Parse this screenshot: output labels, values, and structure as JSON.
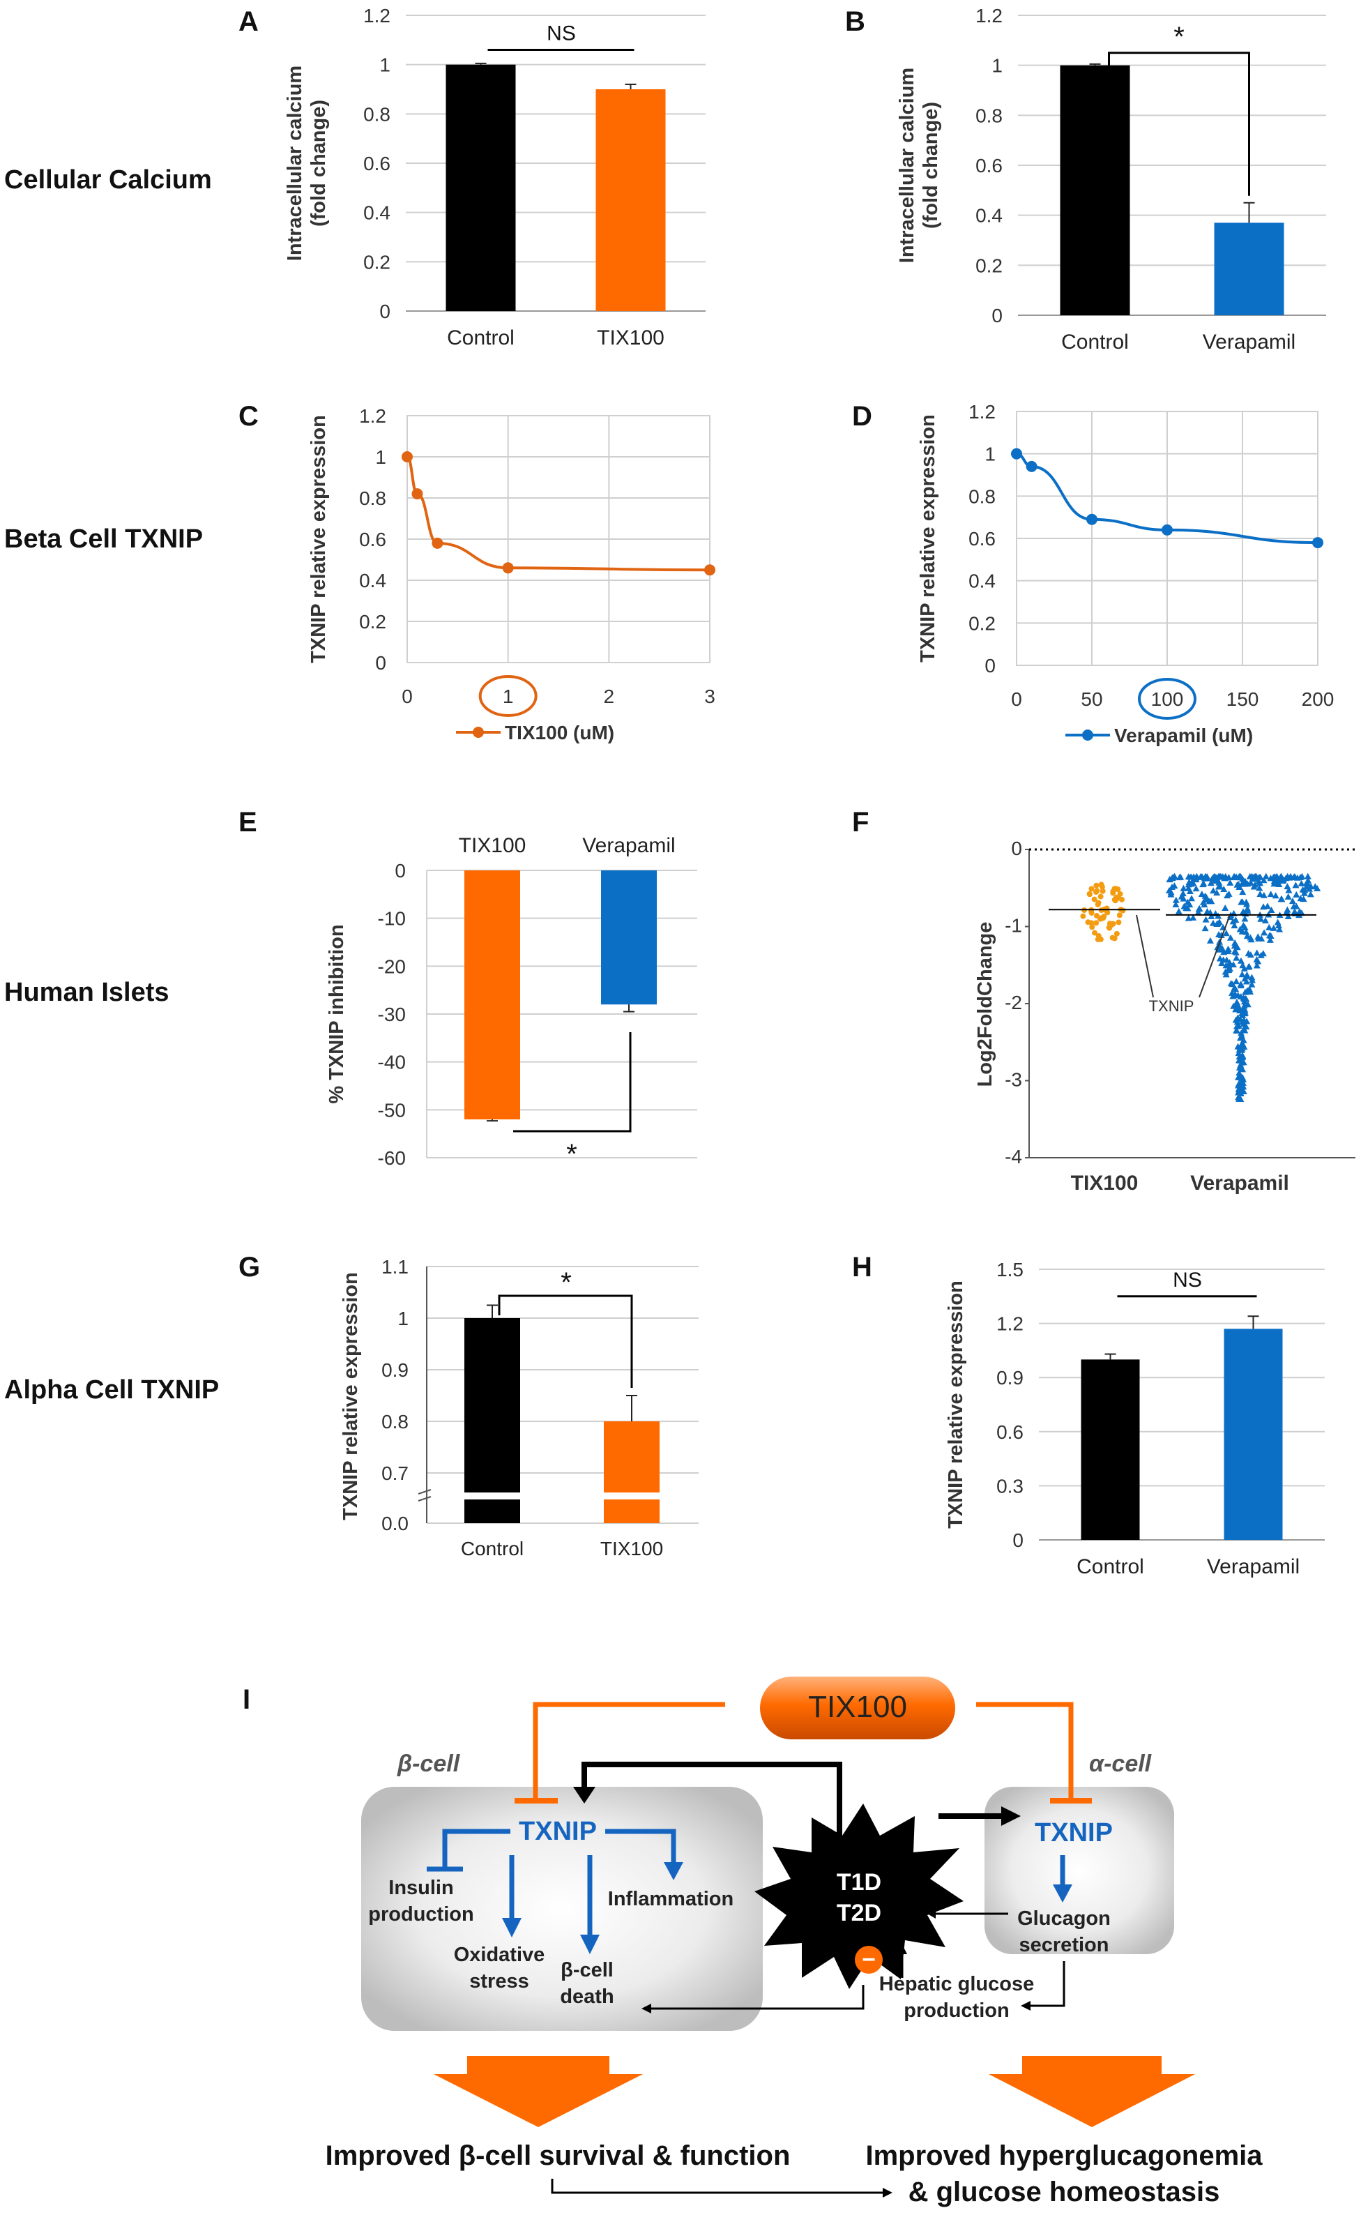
{
  "row_labels": [
    "Cellular Calcium",
    "Beta Cell TXNIP",
    "Human Islets",
    "Alpha Cell TXNIP"
  ],
  "colors": {
    "black": "#000000",
    "orange": "#ff6a00",
    "blue": "#0b6fc6",
    "dark_orange": "#e06412",
    "gold": "#f39c12"
  },
  "chart_data": [
    {
      "panel": "A",
      "type": "bar",
      "categories": [
        "Control",
        "TIX100"
      ],
      "values": [
        1.0,
        0.9
      ],
      "errors": [
        0.005,
        0.02
      ],
      "ylabel": "Intracellular calcium (fold change)",
      "ylim": [
        0,
        1.2
      ],
      "yticks": [
        "0",
        "0.2",
        "0.4",
        "0.6",
        "0.8",
        "1",
        "1.2"
      ],
      "annotation": "NS"
    },
    {
      "panel": "B",
      "type": "bar",
      "categories": [
        "Control",
        "Verapamil"
      ],
      "values": [
        1.0,
        0.37
      ],
      "errors": [
        0.005,
        0.08
      ],
      "ylabel": "Intracellular calcium (fold change)",
      "ylim": [
        0,
        1.2
      ],
      "yticks": [
        "0",
        "0.2",
        "0.4",
        "0.6",
        "0.8",
        "1",
        "1.2"
      ],
      "annotation": "*"
    },
    {
      "panel": "C",
      "type": "line",
      "x": [
        0,
        0.1,
        0.3,
        1,
        3
      ],
      "y": [
        1.0,
        0.82,
        0.58,
        0.46,
        0.45
      ],
      "ylabel": "TXNIP relative expression",
      "legend": "TIX100 (uM)",
      "xlim": [
        0,
        3
      ],
      "ylim": [
        0,
        1.2
      ],
      "xticks": [
        "0",
        "1",
        "2",
        "3"
      ],
      "yticks": [
        "0",
        "0.2",
        "0.4",
        "0.6",
        "0.8",
        "1",
        "1.2"
      ],
      "highlight": "1"
    },
    {
      "panel": "D",
      "type": "line",
      "x": [
        0,
        10,
        50,
        100,
        200
      ],
      "y": [
        1.0,
        0.94,
        0.69,
        0.64,
        0.58
      ],
      "ylabel": "TXNIP relative expression",
      "legend": "Verapamil (uM)",
      "xlim": [
        0,
        200
      ],
      "ylim": [
        0,
        1.2
      ],
      "xticks": [
        "0",
        "50",
        "100",
        "150",
        "200"
      ],
      "yticks": [
        "0",
        "0.2",
        "0.4",
        "0.6",
        "0.8",
        "1",
        "1.2"
      ],
      "highlight": "100"
    },
    {
      "panel": "E",
      "type": "bar",
      "categories": [
        "TIX100",
        "Verapamil"
      ],
      "values": [
        -52,
        -28
      ],
      "errors": [
        0.3,
        1.5
      ],
      "ylabel": "% TXNIP inhibition",
      "ylim": [
        -60,
        0
      ],
      "yticks": [
        "0",
        "-10",
        "-20",
        "-30",
        "-40",
        "-50",
        "-60"
      ],
      "annotation": "*"
    },
    {
      "panel": "F",
      "type": "scatter",
      "categories": [
        "TIX100",
        "Verapamil"
      ],
      "medians": [
        -0.78,
        -0.85
      ],
      "ylabel": "Log2FoldChange",
      "ylim": [
        -4,
        0
      ],
      "yticks": [
        "0",
        "-1",
        "-2",
        "-3",
        "-4"
      ],
      "annotation": "TXNIP"
    },
    {
      "panel": "G",
      "type": "bar",
      "categories": [
        "Control",
        "TIX100"
      ],
      "values": [
        1.0,
        0.8
      ],
      "errors": [
        0.025,
        0.05
      ],
      "ylabel": "TXNIP relative expression",
      "ylim": [
        0,
        1.1
      ],
      "yticks": [
        "0.0",
        "0.7",
        "0.8",
        "0.9",
        "1",
        "1.1"
      ],
      "annotation": "*"
    },
    {
      "panel": "H",
      "type": "bar",
      "categories": [
        "Control",
        "Verapamil"
      ],
      "values": [
        1.0,
        1.17
      ],
      "errors": [
        0.03,
        0.07
      ],
      "ylabel": "TXNIP relative expression",
      "ylim": [
        0,
        1.5
      ],
      "yticks": [
        "0",
        "0.3",
        "0.6",
        "0.9",
        "1.2",
        "1.5"
      ],
      "annotation": "NS"
    }
  ],
  "diagram": {
    "panel": "I",
    "drug": "TIX100",
    "beta_cell_label": "β-cell",
    "alpha_cell_label": "α-cell",
    "txnip": "TXNIP",
    "insulin_1": "Insulin",
    "insulin_2": "production",
    "inflammation": "Inflammation",
    "oxidative_1": "Oxidative",
    "oxidative_2": "stress",
    "death_1": "β-cell",
    "death_2": "death",
    "disease_1": "T1D",
    "disease_2": "T2D",
    "glucagon_1": "Glucagon",
    "glucagon_2": "secretion",
    "hepatic_1": "Hepatic glucose",
    "hepatic_2": "production",
    "minus": "−",
    "outcome_left": "Improved β-cell survival & function",
    "outcome_right_1": "Improved hyperglucagonemia",
    "outcome_right_2": "& glucose homeostasis"
  }
}
